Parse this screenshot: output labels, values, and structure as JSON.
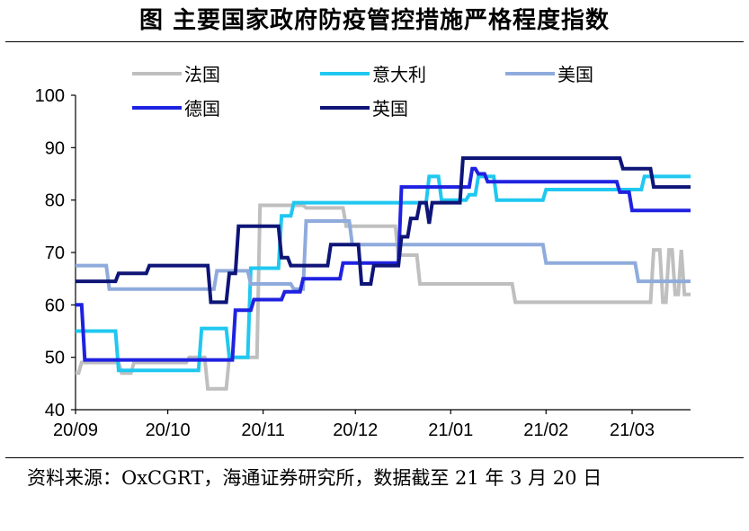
{
  "title": "图  主要国家政府防疫管控措施严格程度指数",
  "source": "资料来源：OxCGRT，海通证券研究所，数据截至 21 年 3 月 20 日",
  "chart_data": {
    "type": "line",
    "title": "图  主要国家政府防疫管控措施严格程度指数",
    "xlabel": "",
    "ylabel": "",
    "ylim": [
      40,
      100
    ],
    "yticks": [
      40,
      50,
      60,
      70,
      80,
      90,
      100
    ],
    "xlim": [
      "2020-09-01",
      "2021-03-20"
    ],
    "xticks": [
      {
        "label": "20/09",
        "date": "2020-09-01"
      },
      {
        "label": "20/10",
        "date": "2020-10-01"
      },
      {
        "label": "20/11",
        "date": "2020-11-01"
      },
      {
        "label": "20/12",
        "date": "2020-12-01"
      },
      {
        "label": "21/01",
        "date": "2021-01-01"
      },
      {
        "label": "21/02",
        "date": "2021-02-01"
      },
      {
        "label": "21/03",
        "date": "2021-03-01"
      }
    ],
    "grid": false,
    "legend": "top",
    "series": [
      {
        "name": "法国",
        "color": "#bfbfbf",
        "points": [
          [
            "2020-09-01",
            47
          ],
          [
            "2020-09-02",
            47
          ],
          [
            "2020-09-03",
            49
          ],
          [
            "2020-09-15",
            49
          ],
          [
            "2020-09-16",
            47
          ],
          [
            "2020-09-19",
            47
          ],
          [
            "2020-09-20",
            49
          ],
          [
            "2020-10-07",
            49
          ],
          [
            "2020-10-08",
            50
          ],
          [
            "2020-10-13",
            50
          ],
          [
            "2020-10-14",
            44
          ],
          [
            "2020-10-20",
            44
          ],
          [
            "2020-10-21",
            50
          ],
          [
            "2020-10-30",
            50
          ],
          [
            "2020-10-31",
            79
          ],
          [
            "2020-11-14",
            79
          ],
          [
            "2020-11-15",
            78.5
          ],
          [
            "2020-11-27",
            78.5
          ],
          [
            "2020-11-28",
            75
          ],
          [
            "2020-12-14",
            75
          ],
          [
            "2020-12-15",
            69.5
          ],
          [
            "2020-12-21",
            69.5
          ],
          [
            "2020-12-22",
            64
          ],
          [
            "2021-01-21",
            64
          ],
          [
            "2021-01-22",
            60.5
          ],
          [
            "2021-03-07",
            60.5
          ],
          [
            "2021-03-08",
            70.5
          ],
          [
            "2021-03-10",
            70.5
          ],
          [
            "2021-03-11",
            60.5
          ],
          [
            "2021-03-12",
            60.5
          ],
          [
            "2021-03-13",
            70.5
          ],
          [
            "2021-03-14",
            70.5
          ],
          [
            "2021-03-15",
            62
          ],
          [
            "2021-03-16",
            62
          ],
          [
            "2021-03-17",
            70.5
          ],
          [
            "2021-03-18",
            62
          ],
          [
            "2021-03-20",
            62
          ]
        ]
      },
      {
        "name": "意大利",
        "color": "#1fc8f0",
        "points": [
          [
            "2020-09-01",
            55
          ],
          [
            "2020-09-14",
            55
          ],
          [
            "2020-09-15",
            47.5
          ],
          [
            "2020-10-11",
            47.5
          ],
          [
            "2020-10-12",
            55.5
          ],
          [
            "2020-10-20",
            55.5
          ],
          [
            "2020-10-21",
            50
          ],
          [
            "2020-10-27",
            50
          ],
          [
            "2020-10-28",
            67
          ],
          [
            "2020-11-06",
            67
          ],
          [
            "2020-11-07",
            77
          ],
          [
            "2020-11-10",
            77
          ],
          [
            "2020-11-11",
            79.5
          ],
          [
            "2020-12-24",
            79.5
          ],
          [
            "2020-12-25",
            84.5
          ],
          [
            "2020-12-28",
            84.5
          ],
          [
            "2020-12-29",
            80
          ],
          [
            "2020-12-30",
            80
          ],
          [
            "2021-01-06",
            80
          ],
          [
            "2021-01-07",
            81
          ],
          [
            "2021-01-09",
            81
          ],
          [
            "2021-01-10",
            84.5
          ],
          [
            "2021-01-15",
            84.5
          ],
          [
            "2021-01-16",
            80
          ],
          [
            "2021-01-31",
            80
          ],
          [
            "2021-02-01",
            82
          ],
          [
            "2021-03-04",
            82
          ],
          [
            "2021-03-05",
            84.5
          ],
          [
            "2021-03-20",
            84.5
          ]
        ]
      },
      {
        "name": "美国",
        "color": "#8fabdc",
        "points": [
          [
            "2020-09-01",
            67.5
          ],
          [
            "2020-09-11",
            67.5
          ],
          [
            "2020-09-12",
            63
          ],
          [
            "2020-10-16",
            63
          ],
          [
            "2020-10-17",
            66.5
          ],
          [
            "2020-10-27",
            66.5
          ],
          [
            "2020-10-28",
            64
          ],
          [
            "2020-11-01",
            64
          ],
          [
            "2020-11-10",
            64
          ],
          [
            "2020-11-11",
            63
          ],
          [
            "2020-11-14",
            63
          ],
          [
            "2020-11-15",
            76
          ],
          [
            "2020-11-29",
            76
          ],
          [
            "2020-11-30",
            71.5
          ],
          [
            "2021-01-31",
            71.5
          ],
          [
            "2021-02-01",
            68
          ],
          [
            "2021-03-02",
            68
          ],
          [
            "2021-03-03",
            64.5
          ],
          [
            "2021-03-20",
            64.5
          ]
        ]
      },
      {
        "name": "德国",
        "color": "#1f22e0",
        "points": [
          [
            "2020-09-01",
            60
          ],
          [
            "2020-09-03",
            60
          ],
          [
            "2020-09-04",
            49.5
          ],
          [
            "2020-10-22",
            49.5
          ],
          [
            "2020-10-23",
            59
          ],
          [
            "2020-10-28",
            59
          ],
          [
            "2020-10-29",
            61
          ],
          [
            "2020-11-07",
            61
          ],
          [
            "2020-11-08",
            62.5
          ],
          [
            "2020-11-13",
            62.5
          ],
          [
            "2020-11-14",
            65
          ],
          [
            "2020-11-26",
            65
          ],
          [
            "2020-11-27",
            68
          ],
          [
            "2020-12-15",
            68
          ],
          [
            "2020-12-16",
            82.5
          ],
          [
            "2020-12-24",
            82.5
          ],
          [
            "2020-12-25",
            82.5
          ],
          [
            "2021-01-07",
            82.5
          ],
          [
            "2021-01-08",
            86
          ],
          [
            "2021-01-09",
            86
          ],
          [
            "2021-01-10",
            85
          ],
          [
            "2021-01-12",
            85
          ],
          [
            "2021-01-13",
            83.5
          ],
          [
            "2021-02-24",
            83.5
          ],
          [
            "2021-02-25",
            81.5
          ],
          [
            "2021-02-28",
            81.5
          ],
          [
            "2021-03-01",
            78
          ],
          [
            "2021-03-20",
            78
          ]
        ]
      },
      {
        "name": "英国",
        "color": "#0e1577",
        "points": [
          [
            "2020-09-01",
            64.5
          ],
          [
            "2020-09-14",
            64.5
          ],
          [
            "2020-09-15",
            66
          ],
          [
            "2020-09-24",
            66
          ],
          [
            "2020-09-25",
            67.5
          ],
          [
            "2020-10-14",
            67.5
          ],
          [
            "2020-10-15",
            60.5
          ],
          [
            "2020-10-20",
            60.5
          ],
          [
            "2020-10-21",
            66
          ],
          [
            "2020-10-23",
            66
          ],
          [
            "2020-10-24",
            75
          ],
          [
            "2020-11-06",
            75
          ],
          [
            "2020-11-07",
            69
          ],
          [
            "2020-11-09",
            69
          ],
          [
            "2020-11-10",
            67.5
          ],
          [
            "2020-11-22",
            67.5
          ],
          [
            "2020-11-23",
            71.5
          ],
          [
            "2020-12-02",
            71.5
          ],
          [
            "2020-12-03",
            64
          ],
          [
            "2020-12-06",
            64
          ],
          [
            "2020-12-07",
            67.5
          ],
          [
            "2020-12-15",
            67.5
          ],
          [
            "2020-12-16",
            73
          ],
          [
            "2020-12-18",
            73
          ],
          [
            "2020-12-19",
            76.5
          ],
          [
            "2020-12-21",
            76.5
          ],
          [
            "2020-12-22",
            79.5
          ],
          [
            "2020-12-24",
            79.5
          ],
          [
            "2020-12-25",
            75.5
          ],
          [
            "2020-12-26",
            79.5
          ],
          [
            "2021-01-04",
            79.5
          ],
          [
            "2021-01-05",
            88
          ],
          [
            "2021-02-25",
            88
          ],
          [
            "2021-02-26",
            86
          ],
          [
            "2021-03-07",
            86
          ],
          [
            "2021-03-08",
            82.5
          ],
          [
            "2021-03-20",
            82.5
          ]
        ]
      }
    ]
  }
}
